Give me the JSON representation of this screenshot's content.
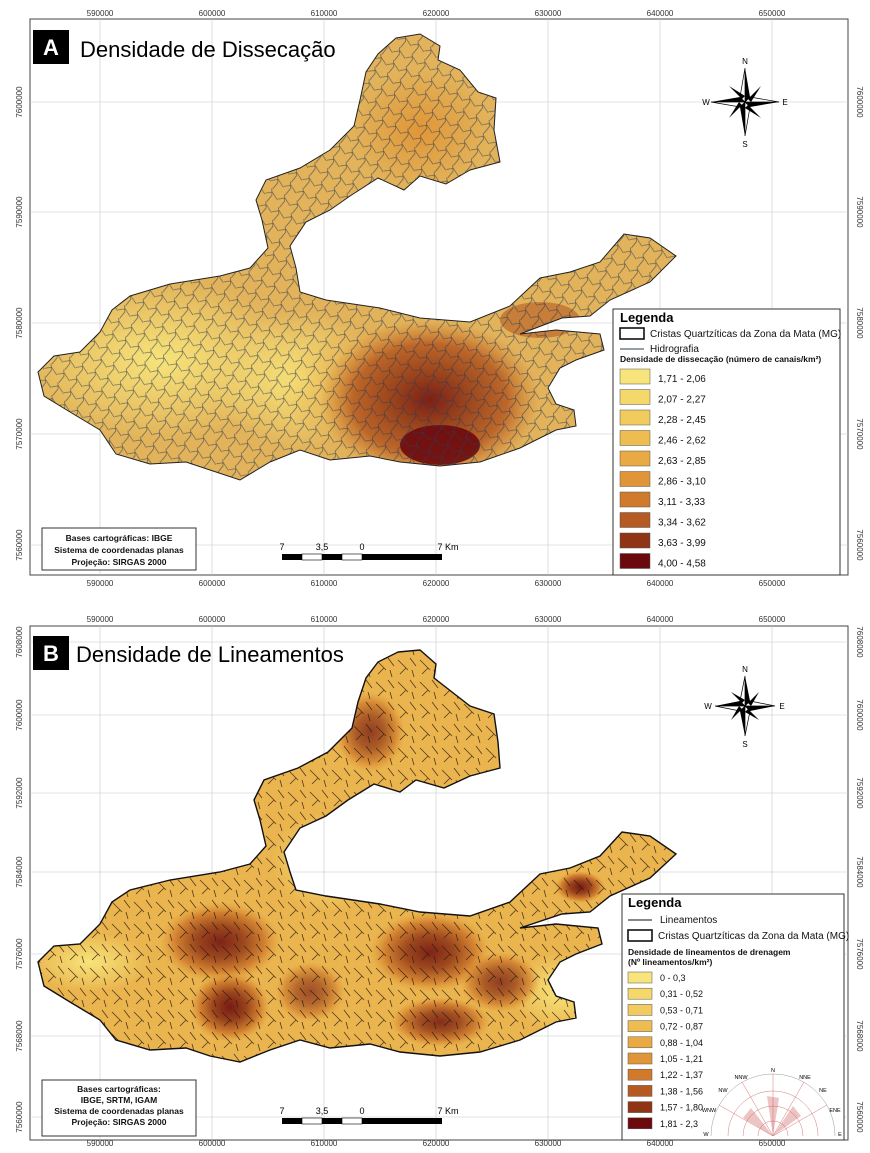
{
  "panelA": {
    "letter": "A",
    "title": "Densidade de Dissecação",
    "x_ticks": [
      "590000",
      "600000",
      "610000",
      "620000",
      "630000",
      "640000",
      "650000"
    ],
    "y_ticks": [
      "7600000",
      "7590000",
      "7580000",
      "7570000",
      "7560000"
    ],
    "compass": {
      "n": "N",
      "s": "S",
      "e": "E",
      "w": "W"
    },
    "legend": {
      "title": "Legenda",
      "boundary": "Cristas Quartzíticas da Zona da Mata (MG)",
      "hydro": "Hidrografia",
      "class_title": "Densidade de dissecação (número de canais/km²)",
      "classes": [
        {
          "label": "1,71 - 2,06",
          "color": "#f7e47a"
        },
        {
          "label": "2,07 - 2,27",
          "color": "#f4d86c"
        },
        {
          "label": "2,28 - 2,45",
          "color": "#f1cb5e"
        },
        {
          "label": "2,46 - 2,62",
          "color": "#eebd52"
        },
        {
          "label": "2,63 - 2,85",
          "color": "#e9aa44"
        },
        {
          "label": "2,86 - 3,10",
          "color": "#e09638"
        },
        {
          "label": "3,11 - 3,33",
          "color": "#cf7a2c"
        },
        {
          "label": "3,34 - 3,62",
          "color": "#b55a22"
        },
        {
          "label": "3,63 - 3,99",
          "color": "#8f3516"
        },
        {
          "label": "4,00 - 4,58",
          "color": "#6b0a0e"
        }
      ]
    },
    "bases": [
      "Bases cartográficas: IBGE",
      "Sistema de coordenadas planas",
      "Projeção: SIRGAS 2000"
    ],
    "scale": {
      "labels": [
        "7",
        "3,5",
        "0",
        "7 Km"
      ]
    }
  },
  "panelB": {
    "letter": "B",
    "title": "Densidade de Lineamentos",
    "x_ticks": [
      "590000",
      "600000",
      "610000",
      "620000",
      "630000",
      "640000",
      "650000"
    ],
    "y_ticks": [
      "7608000",
      "7600000",
      "7592000",
      "7584000",
      "7576000",
      "7568000",
      "7560000"
    ],
    "compass": {
      "n": "N",
      "s": "S",
      "e": "E",
      "w": "W"
    },
    "legend": {
      "title": "Legenda",
      "lines": "Lineamentos",
      "boundary": "Cristas Quartzíticas da Zona da Mata (MG)",
      "class_title_1": "Densidade de lineamentos de drenagem",
      "class_title_2": "(Nº lineamentos/km²)",
      "classes": [
        {
          "label": "0 - 0,3",
          "color": "#f7e47a"
        },
        {
          "label": "0,31 - 0,52",
          "color": "#f4d86c"
        },
        {
          "label": "0,53 - 0,71",
          "color": "#f1cb5e"
        },
        {
          "label": "0,72 - 0,87",
          "color": "#eebd52"
        },
        {
          "label": "0,88 - 1,04",
          "color": "#e9aa44"
        },
        {
          "label": "1,05 - 1,21",
          "color": "#e09638"
        },
        {
          "label": "1,22 - 1,37",
          "color": "#cf7a2c"
        },
        {
          "label": "1,38 - 1,56",
          "color": "#b55a22"
        },
        {
          "label": "1,57 - 1,80",
          "color": "#8f3516"
        },
        {
          "label": "1,81 - 2,3",
          "color": "#6b0a0e"
        }
      ],
      "rose": [
        "N",
        "NNE",
        "NE",
        "ENE",
        "E",
        "NNW",
        "NW",
        "WNW",
        "W"
      ]
    },
    "bases": [
      "Bases cartográficas:",
      "IBGE, SRTM, IGAM",
      "Sistema de coordenadas planas",
      "Projeção: SIRGAS 2000"
    ],
    "scale": {
      "labels": [
        "7",
        "3,5",
        "0",
        "7 Km"
      ]
    }
  }
}
